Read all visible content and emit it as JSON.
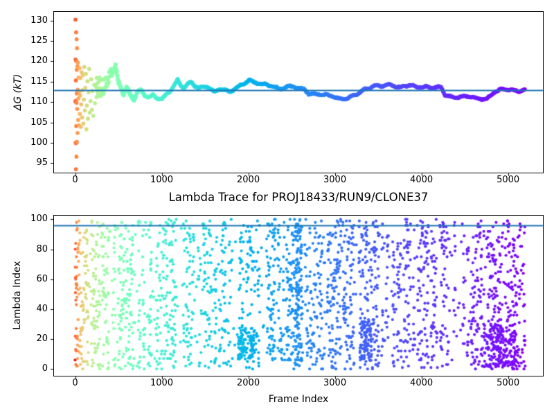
{
  "style": {
    "accent_line_color": "#1f77b4",
    "spine_color": "#000000",
    "text_color": "#000000",
    "background": "#ffffff",
    "colormap": "rainbow_r",
    "color_exponent": 0.3,
    "seed": 20
  },
  "chart_data": [
    {
      "type": "scatter",
      "title": "",
      "xlabel": "",
      "ylabel": "ΔG (kT)",
      "xlim": [
        -252,
        5411
      ],
      "ylim": [
        92.5,
        132.3
      ],
      "xticks": [
        0,
        1000,
        2000,
        3000,
        4000,
        5000
      ],
      "yticks": [
        95,
        100,
        105,
        110,
        115,
        120,
        125,
        130
      ],
      "hline_value": 112.9,
      "n_frames": 5200,
      "sample_step": 8,
      "marker_radius": 2.9,
      "early_points": [
        [
          3,
          110.1
        ],
        [
          4,
          130.2
        ],
        [
          5,
          120.4
        ],
        [
          6,
          100.0
        ],
        [
          7,
          110.3
        ],
        [
          8,
          115.3
        ],
        [
          9,
          93.5
        ],
        [
          10,
          99.9
        ],
        [
          11,
          127.1
        ],
        [
          12,
          110.0
        ],
        [
          13,
          104.1
        ],
        [
          14,
          120.0
        ],
        [
          15,
          96.6
        ],
        [
          16,
          109.8
        ],
        [
          17,
          125.4
        ],
        [
          18,
          112.1
        ],
        [
          19,
          117.9
        ],
        [
          20,
          100.2
        ],
        [
          22,
          123.2
        ],
        [
          24,
          108.3
        ],
        [
          26,
          118.8
        ],
        [
          28,
          102.4
        ],
        [
          30,
          113.0
        ],
        [
          32,
          119.7
        ],
        [
          35,
          105.6
        ],
        [
          38,
          110.9
        ],
        [
          41,
          116.0
        ],
        [
          44,
          104.3
        ],
        [
          47,
          112.5
        ],
        [
          50,
          118.3
        ],
        [
          54,
          107.1
        ],
        [
          58,
          111.6
        ],
        [
          62,
          115.9
        ],
        [
          66,
          103.9
        ],
        [
          70,
          109.4
        ],
        [
          75,
          117.3
        ],
        [
          80,
          106.2
        ],
        [
          85,
          112.9
        ],
        [
          90,
          116.6
        ],
        [
          95,
          104.7
        ],
        [
          100,
          110.6
        ],
        [
          106,
          118.6
        ],
        [
          112,
          107.9
        ],
        [
          118,
          113.5
        ],
        [
          124,
          116.9
        ],
        [
          130,
          103.3
        ],
        [
          136,
          109.1
        ],
        [
          142,
          115.1
        ],
        [
          148,
          105.9
        ],
        [
          155,
          112.4
        ],
        [
          162,
          118.1
        ],
        [
          170,
          107.4
        ],
        [
          178,
          110.2
        ],
        [
          186,
          115.6
        ],
        [
          194,
          108.1
        ],
        [
          202,
          112.7
        ],
        [
          210,
          106.6
        ],
        [
          220,
          114.2
        ],
        [
          230,
          109.7
        ],
        [
          240,
          113.9
        ],
        [
          248,
          111.2
        ]
      ],
      "trace_anchors": [
        [
          250,
          114.5
        ],
        [
          300,
          113.0
        ],
        [
          350,
          114.3
        ],
        [
          400,
          116.5
        ],
        [
          440,
          117.6
        ],
        [
          470,
          118.2
        ],
        [
          500,
          115.0
        ],
        [
          530,
          113.3
        ],
        [
          560,
          111.9
        ],
        [
          600,
          113.8
        ],
        [
          640,
          112.0
        ],
        [
          680,
          110.6
        ],
        [
          720,
          112.3
        ],
        [
          760,
          112.9
        ],
        [
          800,
          111.5
        ],
        [
          850,
          111.0
        ],
        [
          900,
          111.9
        ],
        [
          950,
          111.2
        ],
        [
          1000,
          110.8
        ],
        [
          1050,
          111.8
        ],
        [
          1100,
          112.5
        ],
        [
          1150,
          113.9
        ],
        [
          1185,
          115.4
        ],
        [
          1220,
          114.2
        ],
        [
          1260,
          113.6
        ],
        [
          1300,
          114.6
        ],
        [
          1340,
          115.1
        ],
        [
          1380,
          114.0
        ],
        [
          1430,
          113.2
        ],
        [
          1480,
          113.4
        ],
        [
          1530,
          113.7
        ],
        [
          1610,
          112.6
        ],
        [
          1660,
          113.5
        ],
        [
          1730,
          112.9
        ],
        [
          1790,
          112.3
        ],
        [
          1850,
          113.0
        ],
        [
          1920,
          114.3
        ],
        [
          1960,
          114.9
        ],
        [
          2010,
          115.6
        ],
        [
          2060,
          115.0
        ],
        [
          2110,
          114.5
        ],
        [
          2170,
          114.0
        ],
        [
          2210,
          114.2
        ],
        [
          2290,
          113.9
        ],
        [
          2390,
          113.4
        ],
        [
          2490,
          113.7
        ],
        [
          2570,
          113.3
        ],
        [
          2650,
          113.4
        ],
        [
          2700,
          112.2
        ],
        [
          2760,
          112.0
        ],
        [
          2860,
          111.5
        ],
        [
          2950,
          111.7
        ],
        [
          3050,
          111.0
        ],
        [
          3150,
          110.7
        ],
        [
          3250,
          111.8
        ],
        [
          3350,
          113.4
        ],
        [
          3450,
          113.9
        ],
        [
          3550,
          113.7
        ],
        [
          3650,
          114.3
        ],
        [
          3750,
          113.8
        ],
        [
          3850,
          113.9
        ],
        [
          3950,
          113.6
        ],
        [
          4050,
          114.0
        ],
        [
          4150,
          113.5
        ],
        [
          4230,
          113.4
        ],
        [
          4270,
          111.6
        ],
        [
          4350,
          111.3
        ],
        [
          4450,
          111.5
        ],
        [
          4550,
          111.1
        ],
        [
          4650,
          110.8
        ],
        [
          4750,
          111.0
        ],
        [
          4850,
          112.5
        ],
        [
          4950,
          112.9
        ],
        [
          5050,
          113.1
        ],
        [
          5120,
          112.9
        ],
        [
          5199,
          113.0
        ]
      ],
      "converge_noise": {
        "amplitude": 3.4,
        "decay_frames": 160,
        "end_frame": 700
      },
      "trace_wiggle": [
        [
          0.25,
          55,
          0.0
        ],
        [
          0.15,
          23,
          1.3
        ]
      ]
    },
    {
      "type": "scatter",
      "title": "Lambda Trace for PROJ18433/RUN9/CLONE37",
      "xlabel": "Frame Index",
      "ylabel": "Lambda Index",
      "xlim": [
        -252,
        5411
      ],
      "ylim": [
        -5,
        103
      ],
      "xticks": [
        0,
        1000,
        2000,
        3000,
        4000,
        5000
      ],
      "yticks": [
        0,
        20,
        40,
        60,
        80,
        100
      ],
      "hline_value": 96,
      "n_frames": 5200,
      "lambda_max": 100,
      "sample_step": 2,
      "marker_radius": 2.1,
      "column_width_frames": 26,
      "gap_hash_threshold": 0.22,
      "dense_hash_threshold": 0.78,
      "early_burst": {
        "max_frame": 30,
        "count": 25
      },
      "clusters": [
        [
          1880,
          2100,
          6,
          28,
          90
        ],
        [
          2540,
          2620,
          0,
          100,
          110
        ],
        [
          3280,
          3430,
          4,
          32,
          80
        ],
        [
          4720,
          5090,
          1,
          30,
          150
        ]
      ]
    }
  ]
}
